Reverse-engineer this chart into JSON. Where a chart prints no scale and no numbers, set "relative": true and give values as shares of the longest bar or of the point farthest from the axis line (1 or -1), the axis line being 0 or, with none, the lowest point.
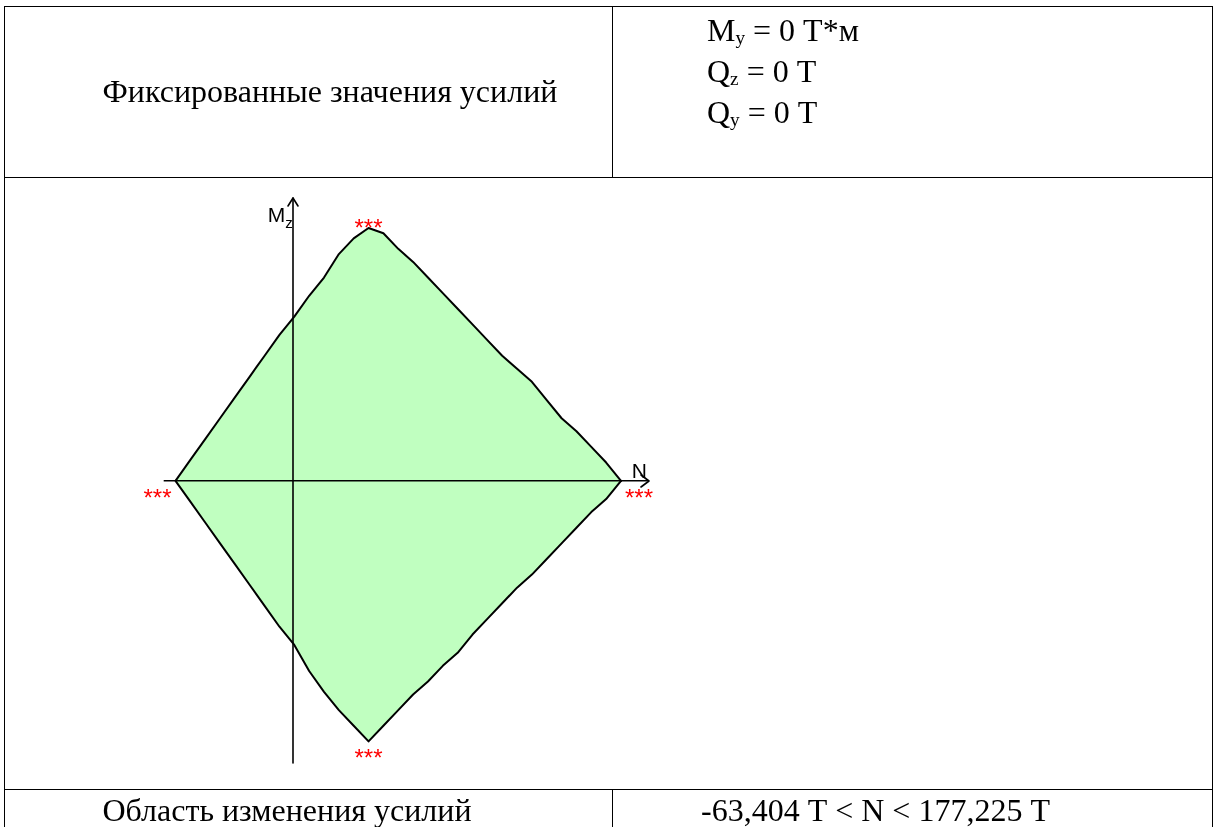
{
  "chart_data": {
    "type": "area",
    "xlabel": "N",
    "ylabel": "M$_{z}$",
    "relative": true,
    "categories": [
      null,
      null,
      null,
      null,
      null,
      null,
      null,
      null,
      null,
      null,
      null,
      null,
      null,
      null,
      null,
      null,
      null,
      null,
      null,
      null,
      null,
      null,
      null,
      null,
      null,
      null,
      null,
      null,
      null,
      null,
      null
    ],
    "series": [
      {
        "color": "#c0ffc0",
        "values": [
          0,
          0.08,
          0.16,
          0.24,
          0.32,
          0.4,
          0.48,
          0.56,
          0.63,
          0.71,
          0.78,
          0.87,
          0.93,
          0.97,
          0.95,
          0.89,
          0.84,
          0.78,
          0.72,
          0.66,
          0.6,
          0.54,
          0.48,
          0.43,
          0.38,
          0.31,
          0.24,
          0.19,
          0.13,
          0.07,
          0
        ]
      },
      {
        "color": "#c0ffc0",
        "values": [
          0,
          -0.08,
          -0.16,
          -0.24,
          -0.32,
          -0.4,
          -0.48,
          -0.56,
          -0.63,
          -0.73,
          -0.81,
          -0.88,
          -0.94,
          -1,
          -0.94,
          -0.88,
          -0.82,
          -0.77,
          -0.71,
          -0.66,
          -0.59,
          -0.53,
          -0.47,
          -0.41,
          -0.36,
          -0.3,
          -0.24,
          -0.18,
          -0.12,
          -0.07,
          0
        ]
      }
    ],
    "annotations": [
      "Фиксированные значения усилий",
      "M$_{y}$ = 0 Т*м\nQ$_{z}$ = 0 Т\nQ$_{y}$ = 0 Т",
      "Область изменения усилий",
      "-63,404 Т < N < 177,225 Т",
      "***",
      "***",
      "***",
      "***"
    ]
  }
}
